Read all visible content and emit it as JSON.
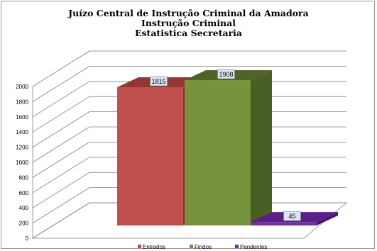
{
  "colors": {
    "background": "#ffffff",
    "gridline": "#808080",
    "label_box": "#dbe5f1"
  },
  "chart_data": {
    "type": "bar",
    "title_lines": [
      "Juízo Central de Instrução Criminal da Amadora",
      "Instrução Criminal",
      "Estatistica Secretaria"
    ],
    "categories": [
      "Entrados",
      "Findos",
      "Pendentes"
    ],
    "values": [
      1815,
      1908,
      45
    ],
    "colors": {
      "Entrados": {
        "front": "#c0504d",
        "top": "#943634",
        "side": "#8b2f2c"
      },
      "Findos": {
        "front": "#77933c",
        "top": "#4f6228",
        "side": "#4a5f25"
      },
      "Pendentes": {
        "front": "#7030a0",
        "top": "#5a1e86",
        "side": "#4b1670"
      }
    },
    "ylim": [
      0,
      2000
    ],
    "yticks": [
      0,
      200,
      400,
      600,
      800,
      1000,
      1200,
      1400,
      1600,
      1800,
      2000
    ],
    "grid": true,
    "legend_position": "bottom",
    "style": "3d-clustered-column"
  }
}
